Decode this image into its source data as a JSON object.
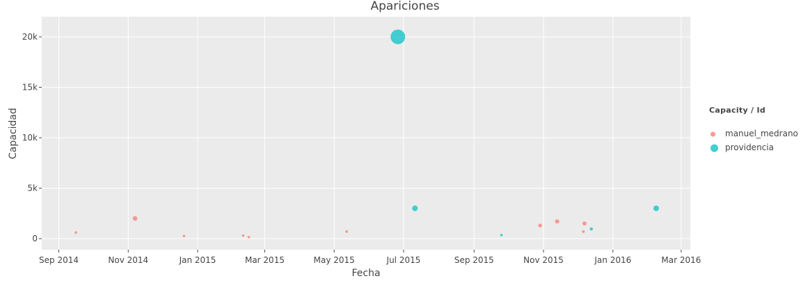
{
  "chart_data": {
    "type": "scatter",
    "title": "Apariciones",
    "xlabel": "Fecha",
    "ylabel": "Capacidad",
    "x_type": "date",
    "xlim": [
      "2014-08-17",
      "2016-03-09"
    ],
    "ylim": [
      -1100,
      22000
    ],
    "x_ticks": [
      {
        "date": "2014-09-01",
        "label": "Sep 2014"
      },
      {
        "date": "2014-11-01",
        "label": "Nov 2014"
      },
      {
        "date": "2015-01-01",
        "label": "Jan 2015"
      },
      {
        "date": "2015-03-01",
        "label": "Mar 2015"
      },
      {
        "date": "2015-05-01",
        "label": "May 2015"
      },
      {
        "date": "2015-07-01",
        "label": "Jul 2015"
      },
      {
        "date": "2015-09-01",
        "label": "Sep 2015"
      },
      {
        "date": "2015-11-01",
        "label": "Nov 2015"
      },
      {
        "date": "2016-01-01",
        "label": "Jan 2016"
      },
      {
        "date": "2016-03-01",
        "label": "Mar 2016"
      }
    ],
    "y_ticks": [
      {
        "value": 0,
        "label": "0"
      },
      {
        "value": 5000,
        "label": "5k"
      },
      {
        "value": 10000,
        "label": "10k"
      },
      {
        "value": 15000,
        "label": "15k"
      },
      {
        "value": 20000,
        "label": "20k"
      }
    ],
    "grid": true,
    "background": "#ebebeb",
    "legend": {
      "title": "Capacity / Id",
      "position": "right"
    },
    "series": [
      {
        "name": "manuel_medrano",
        "color": "#f8766d",
        "points": [
          {
            "x": "2014-09-16",
            "y": 600
          },
          {
            "x": "2014-11-07",
            "y": 2000
          },
          {
            "x": "2014-12-20",
            "y": 250
          },
          {
            "x": "2015-02-10",
            "y": 300
          },
          {
            "x": "2015-02-15",
            "y": 150
          },
          {
            "x": "2015-05-12",
            "y": 700
          },
          {
            "x": "2015-10-29",
            "y": 1300
          },
          {
            "x": "2015-11-13",
            "y": 1700
          },
          {
            "x": "2015-12-06",
            "y": 700
          },
          {
            "x": "2015-12-07",
            "y": 1500
          }
        ]
      },
      {
        "name": "providencia",
        "color": "#00bfc4",
        "points": [
          {
            "x": "2015-06-26",
            "y": 20000
          },
          {
            "x": "2015-07-11",
            "y": 3000
          },
          {
            "x": "2015-09-25",
            "y": 350
          },
          {
            "x": "2015-12-13",
            "y": 950
          },
          {
            "x": "2016-02-08",
            "y": 3000
          }
        ]
      }
    ]
  }
}
